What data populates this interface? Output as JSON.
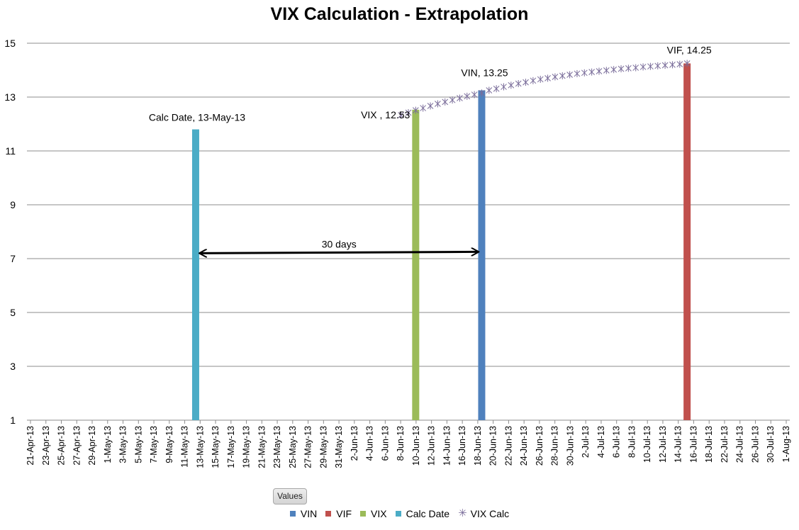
{
  "chart_data": {
    "type": "bar",
    "title": "VIX Calculation - Extrapolation",
    "xlabel": "",
    "ylabel": "",
    "ylim": [
      1,
      15
    ],
    "yticks": [
      1,
      3,
      5,
      7,
      9,
      11,
      13,
      15
    ],
    "grid": true,
    "legend_title": "Values",
    "legend_position": "bottom",
    "x_tick_labels": [
      "21-Apr-13",
      "23-Apr-13",
      "25-Apr-13",
      "27-Apr-13",
      "29-Apr-13",
      "1-May-13",
      "3-May-13",
      "5-May-13",
      "7-May-13",
      "9-May-13",
      "11-May-13",
      "13-May-13",
      "15-May-13",
      "17-May-13",
      "19-May-13",
      "21-May-13",
      "23-May-13",
      "25-May-13",
      "27-May-13",
      "29-May-13",
      "31-May-13",
      "2-Jun-13",
      "4-Jun-13",
      "6-Jun-13",
      "8-Jun-13",
      "10-Jun-13",
      "12-Jun-13",
      "14-Jun-13",
      "16-Jun-13",
      "18-Jun-13",
      "20-Jun-13",
      "22-Jun-13",
      "24-Jun-13",
      "26-Jun-13",
      "28-Jun-13",
      "30-Jun-13",
      "2-Jul-13",
      "4-Jul-13",
      "6-Jul-13",
      "8-Jul-13",
      "10-Jul-13",
      "12-Jul-13",
      "14-Jul-13",
      "16-Jul-13",
      "18-Jul-13",
      "22-Jul-13",
      "24-Jul-13",
      "26-Jul-13",
      "30-Jul-13",
      "1-Aug-13"
    ],
    "series": [
      {
        "name": "VIN",
        "color": "#4f81bd",
        "type": "bar",
        "x": "21-Jun-13",
        "value": 13.25,
        "label": "VIN, 13.25"
      },
      {
        "name": "VIF",
        "color": "#c0504d",
        "type": "bar",
        "x": "19-Jul-13",
        "value": 14.25,
        "label": "VIF, 14.25"
      },
      {
        "name": "VIX",
        "color": "#9bbb59",
        "type": "bar",
        "x": "12-Jun-13",
        "value": 12.53,
        "label": "VIX , 12.53"
      },
      {
        "name": "Calc Date",
        "color": "#4bacc6",
        "type": "bar",
        "x": "13-May-13",
        "value": 11.8,
        "label": "Calc Date, 13-May-13"
      },
      {
        "name": "VIX Calc",
        "color": "#7a6d9a",
        "type": "scatter",
        "marker": "star",
        "x_start": "10-Jun-13",
        "x_end": "19-Jul-13",
        "values": [
          12.33,
          12.42,
          12.51,
          12.59,
          12.67,
          12.75,
          12.82,
          12.89,
          12.96,
          13.03,
          13.09,
          13.15,
          13.25,
          13.31,
          13.38,
          13.44,
          13.5,
          13.55,
          13.61,
          13.66,
          13.7,
          13.75,
          13.79,
          13.83,
          13.87,
          13.9,
          13.93,
          13.96,
          13.99,
          14.02,
          14.05,
          14.07,
          14.09,
          14.12,
          14.14,
          14.16,
          14.18,
          14.2,
          14.22,
          14.25
        ]
      }
    ],
    "annotations": [
      {
        "text": "30 days",
        "type": "double-arrow",
        "from": "13-May-13",
        "to": "21-Jun-13",
        "y": 7.2
      }
    ]
  }
}
